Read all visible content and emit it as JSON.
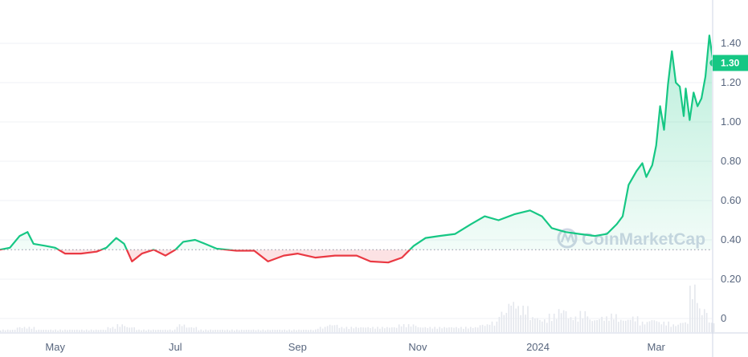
{
  "chart_data": {
    "type": "area",
    "x_tick_labels": [
      "May",
      "Jul",
      "Sep",
      "Nov",
      "2024",
      "Mar"
    ],
    "x_tick_dates": [
      "2023-05-01",
      "2023-07-01",
      "2023-09-01",
      "2023-11-01",
      "2024-01-01",
      "2024-03-01"
    ],
    "y_tick_labels": [
      "0",
      "0.20",
      "0.40",
      "0.60",
      "0.80",
      "1.00",
      "1.20",
      "1.40"
    ],
    "y_ticks": [
      0,
      0.2,
      0.4,
      0.6,
      0.8,
      1.0,
      1.2,
      1.4
    ],
    "ylim": [
      0,
      1.6
    ],
    "xlim": [
      "2023-04-03",
      "2024-04-06"
    ],
    "grid": true,
    "baseline_value": 0.35,
    "current_price_label": "1.30",
    "current_price": 1.3,
    "colors": {
      "up": "#16c784",
      "down": "#ea3943",
      "volume": "#e4e7ed",
      "grid": "#eff2f5",
      "axis": "#cfd6e4"
    },
    "watermark": "CoinMarketCap",
    "series": [
      {
        "points": [
          [
            "2023-04-03",
            0.35
          ],
          [
            "2023-04-08",
            0.36
          ],
          [
            "2023-04-13",
            0.42
          ],
          [
            "2023-04-17",
            0.44
          ],
          [
            "2023-04-20",
            0.38
          ],
          [
            "2023-04-26",
            0.37
          ],
          [
            "2023-05-01",
            0.36
          ],
          [
            "2023-05-06",
            0.33
          ],
          [
            "2023-05-14",
            0.33
          ],
          [
            "2023-05-22",
            0.34
          ],
          [
            "2023-05-27",
            0.36
          ],
          [
            "2023-06-01",
            0.41
          ],
          [
            "2023-06-05",
            0.38
          ],
          [
            "2023-06-09",
            0.29
          ],
          [
            "2023-06-14",
            0.33
          ],
          [
            "2023-06-20",
            0.35
          ],
          [
            "2023-06-26",
            0.32
          ],
          [
            "2023-07-01",
            0.35
          ],
          [
            "2023-07-05",
            0.39
          ],
          [
            "2023-07-11",
            0.4
          ],
          [
            "2023-07-16",
            0.38
          ],
          [
            "2023-07-22",
            0.355
          ],
          [
            "2023-08-01",
            0.345
          ],
          [
            "2023-08-10",
            0.345
          ],
          [
            "2023-08-17",
            0.29
          ],
          [
            "2023-08-25",
            0.32
          ],
          [
            "2023-09-01",
            0.33
          ],
          [
            "2023-09-10",
            0.31
          ],
          [
            "2023-09-20",
            0.32
          ],
          [
            "2023-10-01",
            0.32
          ],
          [
            "2023-10-08",
            0.29
          ],
          [
            "2023-10-17",
            0.285
          ],
          [
            "2023-10-24",
            0.31
          ],
          [
            "2023-10-30",
            0.37
          ],
          [
            "2023-11-05",
            0.41
          ],
          [
            "2023-11-12",
            0.42
          ],
          [
            "2023-11-20",
            0.43
          ],
          [
            "2023-11-28",
            0.48
          ],
          [
            "2023-12-05",
            0.52
          ],
          [
            "2023-12-12",
            0.5
          ],
          [
            "2023-12-20",
            0.53
          ],
          [
            "2023-12-28",
            0.55
          ],
          [
            "2024-01-03",
            0.52
          ],
          [
            "2024-01-08",
            0.46
          ],
          [
            "2024-01-15",
            0.44
          ],
          [
            "2024-01-22",
            0.43
          ],
          [
            "2024-01-30",
            0.42
          ],
          [
            "2024-02-05",
            0.43
          ],
          [
            "2024-02-10",
            0.48
          ],
          [
            "2024-02-13",
            0.52
          ],
          [
            "2024-02-16",
            0.68
          ],
          [
            "2024-02-20",
            0.75
          ],
          [
            "2024-02-23",
            0.79
          ],
          [
            "2024-02-25",
            0.72
          ],
          [
            "2024-02-28",
            0.78
          ],
          [
            "2024-03-01",
            0.88
          ],
          [
            "2024-03-03",
            1.08
          ],
          [
            "2024-03-05",
            0.96
          ],
          [
            "2024-03-07",
            1.19
          ],
          [
            "2024-03-09",
            1.36
          ],
          [
            "2024-03-11",
            1.2
          ],
          [
            "2024-03-13",
            1.18
          ],
          [
            "2024-03-15",
            1.03
          ],
          [
            "2024-03-16",
            1.17
          ],
          [
            "2024-03-18",
            1.01
          ],
          [
            "2024-03-20",
            1.15
          ],
          [
            "2024-03-22",
            1.08
          ],
          [
            "2024-03-24",
            1.12
          ],
          [
            "2024-03-26",
            1.23
          ],
          [
            "2024-03-28",
            1.44
          ],
          [
            "2024-03-30",
            1.3
          ]
        ]
      }
    ],
    "volume_relative": [
      1,
      1,
      2,
      2,
      1,
      1,
      1,
      1,
      1,
      1,
      1,
      2,
      3,
      2,
      1,
      1,
      1,
      1,
      3,
      2,
      1,
      1,
      1,
      1,
      1,
      1,
      1,
      1,
      1,
      1,
      1,
      1,
      2,
      3,
      2,
      2,
      2,
      2,
      2,
      2,
      3,
      3,
      2,
      2,
      2,
      2,
      2,
      2,
      3,
      4,
      8,
      12,
      10,
      6,
      5,
      7,
      9,
      6,
      8,
      5,
      6,
      7,
      5,
      6,
      4,
      5,
      4,
      3,
      4,
      18,
      9,
      4
    ]
  }
}
